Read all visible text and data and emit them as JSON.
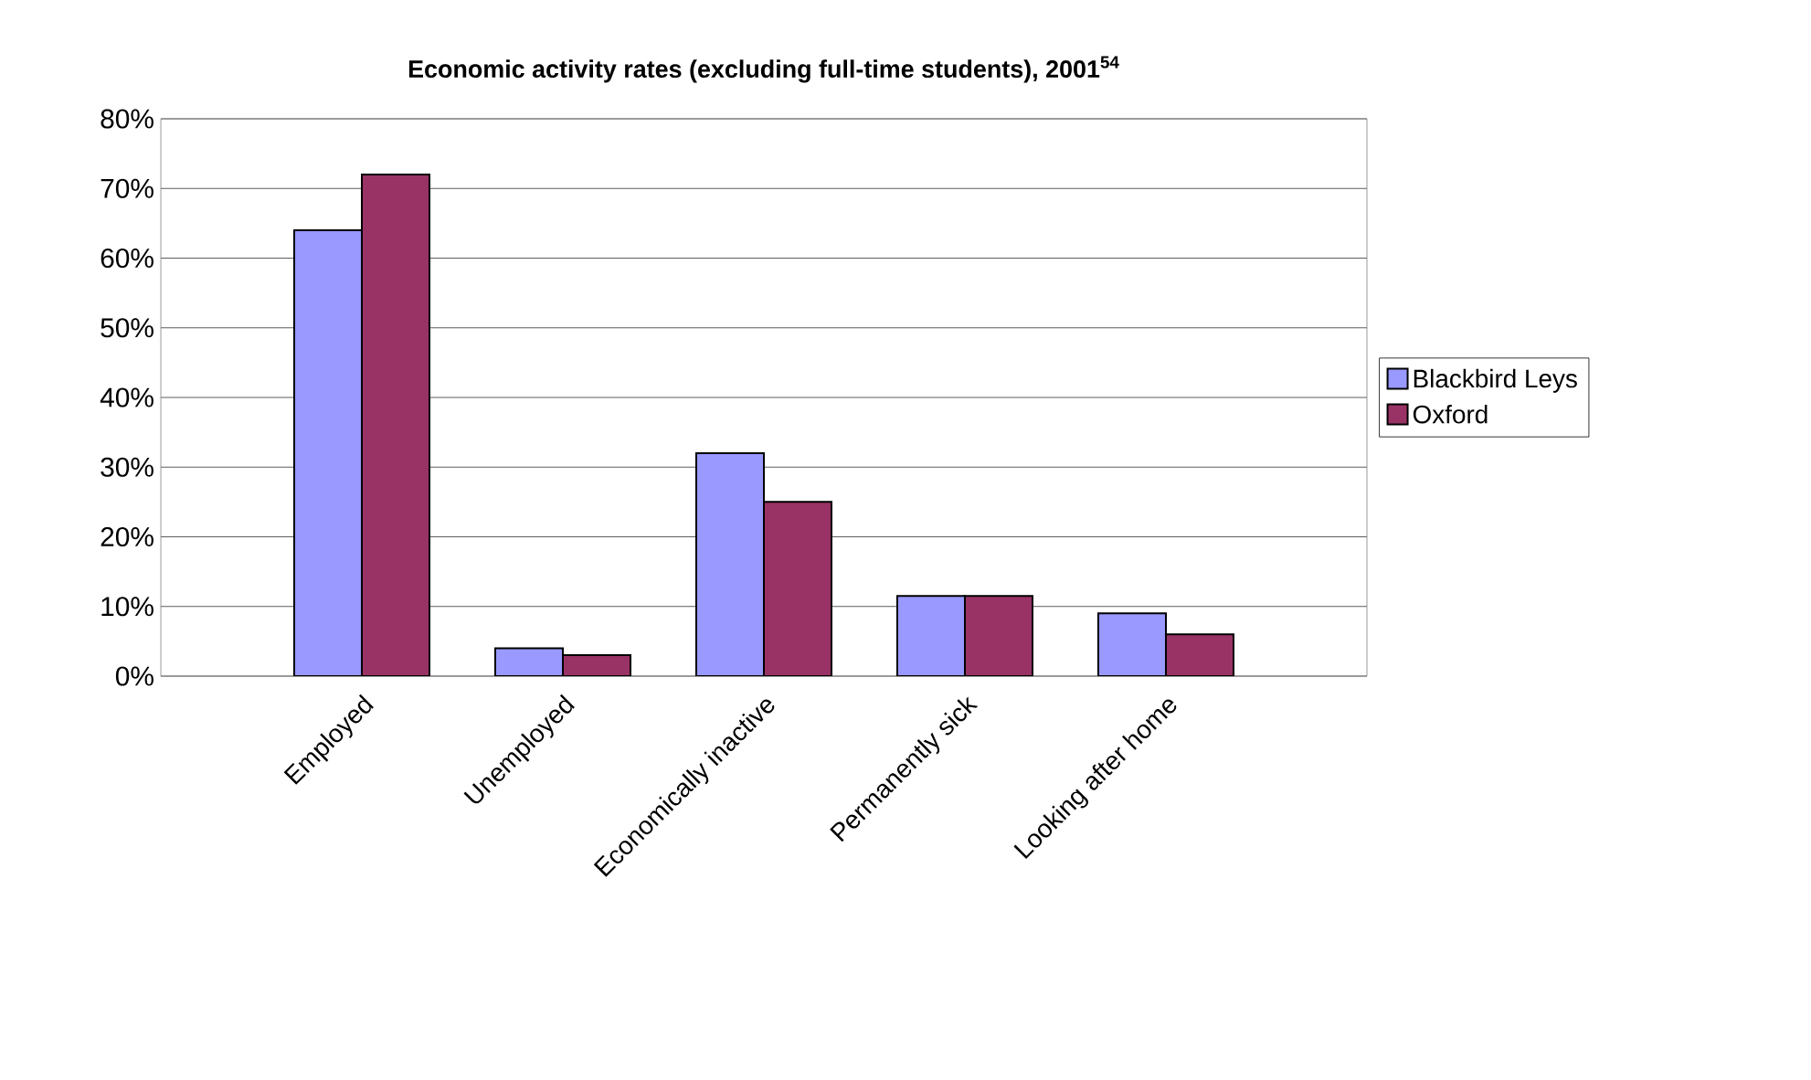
{
  "chart_data": {
    "type": "bar",
    "title": "Economic activity rates (excluding full-time students), 2001$^{54}$",
    "categories": [
      "Employed",
      "Unemployed",
      "Economically inactive",
      "Permanently sick",
      "Looking after home"
    ],
    "series": [
      {
        "name": "Blackbird Leys",
        "color": "#9999ff",
        "values": [
          64,
          4,
          32,
          11.5,
          9
        ]
      },
      {
        "name": "Oxford",
        "color": "#993366",
        "values": [
          72,
          3,
          25,
          11.5,
          6
        ]
      }
    ],
    "ylim": [
      0,
      80
    ],
    "yticks": [
      {
        "value": 0,
        "label": "0%"
      },
      {
        "value": 10,
        "label": "10%"
      },
      {
        "value": 20,
        "label": "20%"
      },
      {
        "value": 30,
        "label": "30%"
      },
      {
        "value": 40,
        "label": "40%"
      },
      {
        "value": 50,
        "label": "50%"
      },
      {
        "value": 60,
        "label": "60%"
      },
      {
        "value": 70,
        "label": "70%"
      },
      {
        "value": 80,
        "label": "80%"
      }
    ],
    "grid": "y",
    "legend": "right"
  }
}
